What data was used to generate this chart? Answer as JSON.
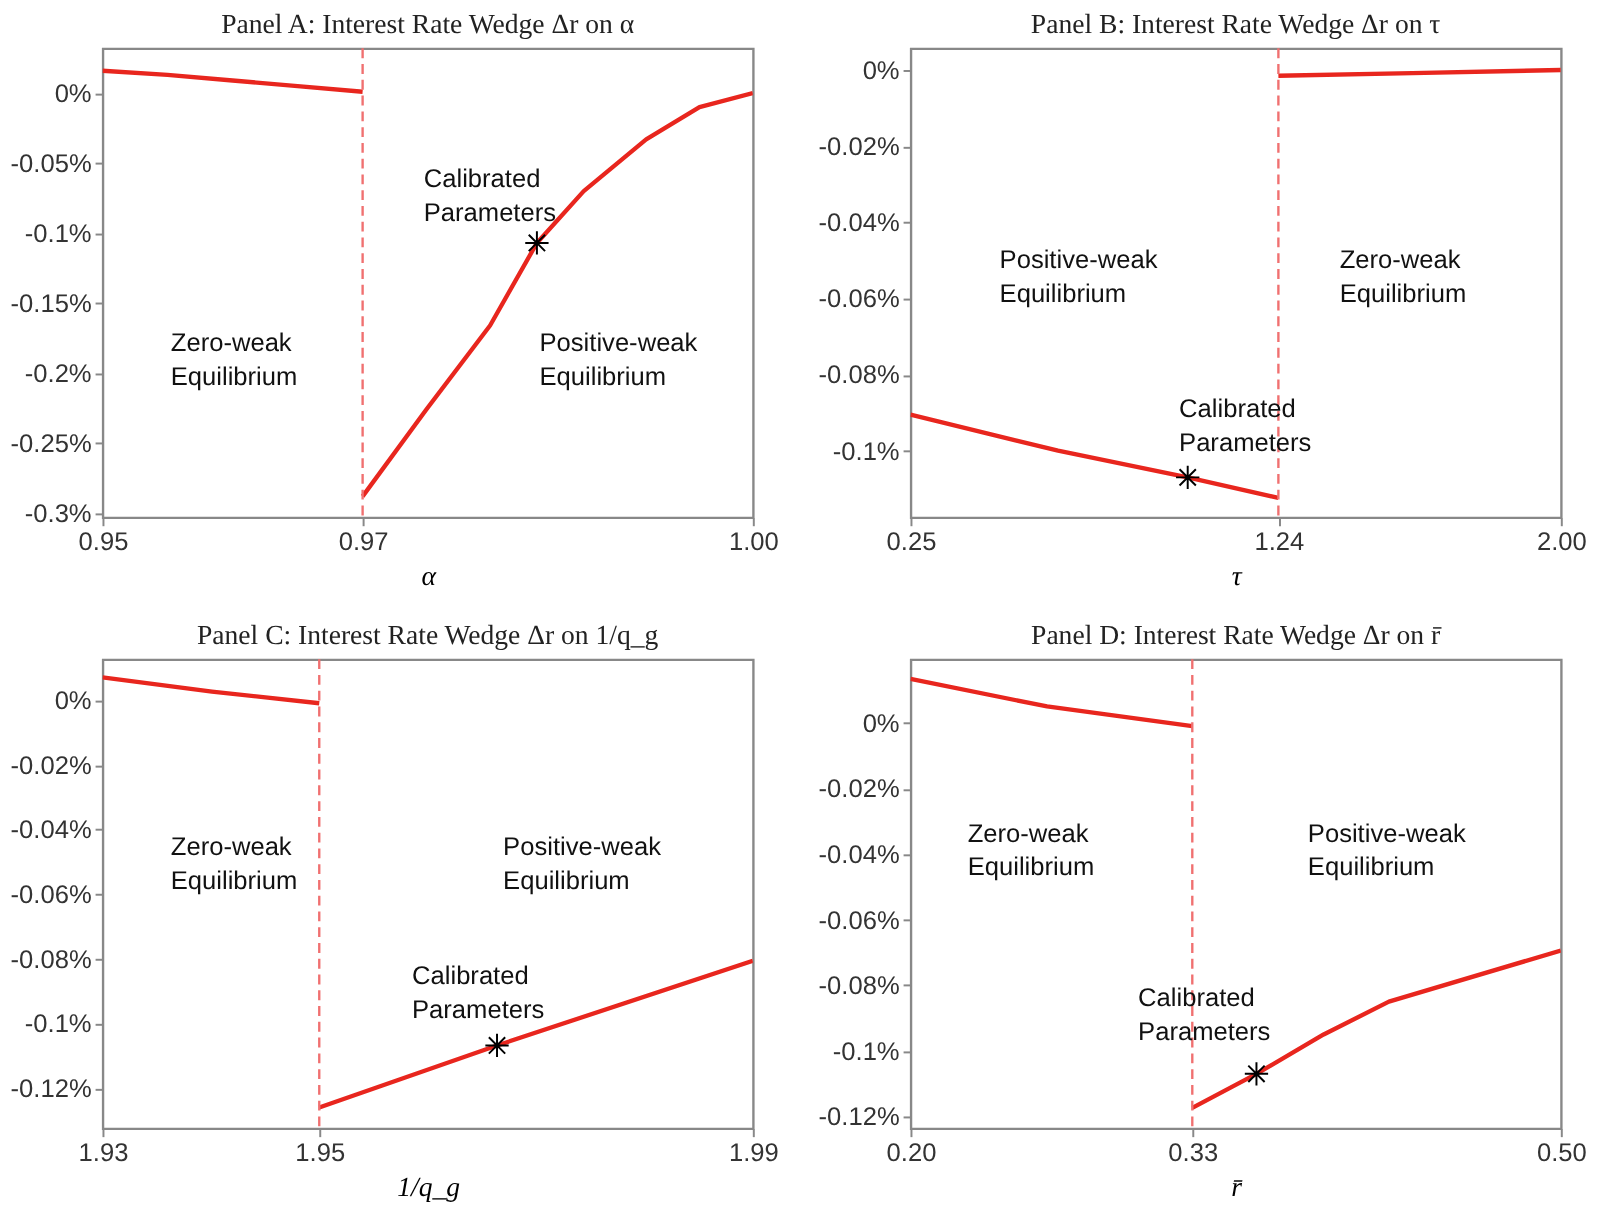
{
  "chart_data": [
    {
      "type": "line",
      "title": "Panel A: Interest Rate Wedge Δr on α",
      "xlabel": "α",
      "xlim": [
        0.95,
        1.0
      ],
      "xticks": [
        {
          "value": 0.95,
          "label": "0.95"
        },
        0.97,
        {
          "value": 1.0,
          "label": "1.00"
        }
      ],
      "ylim": [
        -0.303,
        0.032
      ],
      "yticks": [
        {
          "value": 0,
          "label": "0%"
        },
        {
          "value": -0.05,
          "label": "-0.05%"
        },
        {
          "value": -0.1,
          "label": "-0.1%"
        },
        {
          "value": -0.15,
          "label": "-0.15%"
        },
        {
          "value": -0.2,
          "label": "-0.2%"
        },
        {
          "value": -0.25,
          "label": "-0.25%"
        },
        {
          "value": -0.3,
          "label": "-0.3%"
        }
      ],
      "grid": false,
      "series": [
        {
          "color": "#e8261e",
          "x": [
            0.95,
            0.955,
            0.96,
            0.965,
            0.97
          ],
          "values": [
            0.016,
            0.013,
            0.009,
            0.005,
            0.001
          ]
        },
        {
          "color": "#e8261e",
          "x": [
            0.97,
            0.9749,
            0.9798,
            0.9834,
            0.987,
            0.9918,
            0.9959,
            1.0
          ],
          "values": [
            -0.288,
            -0.226,
            -0.166,
            -0.107,
            -0.07,
            -0.033,
            -0.01,
            0.0
          ]
        },
        {
          "type": "scatter",
          "color": "#000000",
          "marker": "cross",
          "x": [
            0.9834
          ],
          "values": [
            -0.107
          ]
        }
      ],
      "ref_lines": [
        {
          "axis": "x",
          "value": 0.97,
          "color": "#f07070",
          "line_style": "dashed"
        }
      ],
      "annotations": [
        "Calibrated\nParameters",
        "Zero-weak\nEquilibrium",
        "Positive-weak\nEquilibrium"
      ]
    },
    {
      "type": "line",
      "title": "Panel B: Interest Rate Wedge Δr on τ",
      "xlabel": "τ",
      "xlim": [
        0.25,
        2.0
      ],
      "xticks": [
        0.25,
        1.24,
        {
          "value": 2.0,
          "label": "2.00"
        }
      ],
      "ylim": [
        -0.1175,
        0.0057
      ],
      "yticks": [
        {
          "value": 0,
          "label": "0%"
        },
        {
          "value": -0.02,
          "label": "-0.02%"
        },
        {
          "value": -0.04,
          "label": "-0.04%"
        },
        {
          "value": -0.06,
          "label": "-0.06%"
        },
        {
          "value": -0.08,
          "label": "-0.08%"
        },
        {
          "value": -0.1,
          "label": "-0.1%"
        }
      ],
      "grid": false,
      "series": [
        {
          "color": "#e8261e",
          "x": [
            0.25,
            0.647,
            0.996,
            1.24
          ],
          "values": [
            -0.0905,
            -0.1,
            -0.107,
            -0.1124
          ]
        },
        {
          "color": "#e8261e",
          "x": [
            1.24,
            1.6,
            2.0
          ],
          "values": [
            -0.0015,
            -0.0008,
            0.0
          ]
        },
        {
          "type": "scatter",
          "color": "#000000",
          "marker": "cross",
          "x": [
            0.996
          ],
          "values": [
            -0.107
          ]
        }
      ],
      "ref_lines": [
        {
          "axis": "x",
          "value": 1.24,
          "color": "#f07070",
          "line_style": "dashed"
        }
      ],
      "annotations": [
        "Positive-weak\nEquilibrium",
        "Zero-weak\nEquilibrium",
        "Calibrated\nParameters"
      ]
    },
    {
      "type": "line",
      "title": "Panel C: Interest Rate Wedge Δr on 1/q_g",
      "xlabel": "1/q_g",
      "xlim": [
        1.93,
        1.99
      ],
      "xticks": [
        1.93,
        1.95,
        1.99
      ],
      "ylim": [
        -0.1324,
        0.0126
      ],
      "yticks": [
        {
          "value": 0,
          "label": "0%"
        },
        {
          "value": -0.02,
          "label": "-0.02%"
        },
        {
          "value": -0.04,
          "label": "-0.04%"
        },
        {
          "value": -0.06,
          "label": "-0.06%"
        },
        {
          "value": -0.08,
          "label": "-0.08%"
        },
        {
          "value": -0.1,
          "label": "-0.1%"
        },
        {
          "value": -0.12,
          "label": "-0.12%"
        }
      ],
      "grid": false,
      "series": [
        {
          "color": "#e8261e",
          "x": [
            1.93,
            1.9401,
            1.95
          ],
          "values": [
            0.007,
            0.0026,
            -0.001
          ]
        },
        {
          "color": "#e8261e",
          "x": [
            1.95,
            1.9664,
            1.99
          ],
          "values": [
            -0.126,
            -0.1068,
            -0.0806
          ]
        },
        {
          "type": "scatter",
          "color": "#000000",
          "marker": "cross",
          "x": [
            1.9664
          ],
          "values": [
            -0.1068
          ]
        }
      ],
      "ref_lines": [
        {
          "axis": "x",
          "value": 1.95,
          "color": "#f07070",
          "line_style": "dashed"
        }
      ],
      "annotations": [
        "Zero-weak\nEquilibrium",
        "Positive-weak\nEquilibrium",
        "Calibrated\nParameters"
      ]
    },
    {
      "type": "line",
      "title": "Panel D: Interest Rate Wedge Δr on r̄",
      "xlabel": "r̄",
      "xlim": [
        0.2,
        0.5
      ],
      "xticks": [
        {
          "value": 0.2,
          "label": "0.20"
        },
        0.33,
        {
          "value": 0.5,
          "label": "0.50"
        }
      ],
      "ylim": [
        -0.1236,
        0.0194
      ],
      "yticks": [
        {
          "value": 0,
          "label": "0%"
        },
        {
          "value": -0.02,
          "label": "-0.02%"
        },
        {
          "value": -0.04,
          "label": "-0.04%"
        },
        {
          "value": -0.06,
          "label": "-0.06%"
        },
        {
          "value": -0.08,
          "label": "-0.08%"
        },
        {
          "value": -0.1,
          "label": "-0.1%"
        },
        {
          "value": -0.12,
          "label": "-0.12%"
        }
      ],
      "grid": false,
      "series": [
        {
          "color": "#e8261e",
          "x": [
            0.2,
            0.263,
            0.33
          ],
          "values": [
            0.0134,
            0.005,
            -0.001
          ]
        },
        {
          "color": "#e8261e",
          "x": [
            0.33,
            0.3596,
            0.3906,
            0.4207,
            0.5
          ],
          "values": [
            -0.1174,
            -0.107,
            -0.095,
            -0.085,
            -0.0694
          ]
        },
        {
          "type": "scatter",
          "color": "#000000",
          "marker": "cross",
          "x": [
            0.3596
          ],
          "values": [
            -0.107
          ]
        }
      ],
      "ref_lines": [
        {
          "axis": "x",
          "value": 0.33,
          "color": "#f07070",
          "line_style": "dashed"
        }
      ],
      "annotations": [
        "Zero-weak\nEquilibrium",
        "Positive-weak\nEquilibrium",
        "Calibrated\nParameters"
      ]
    }
  ]
}
